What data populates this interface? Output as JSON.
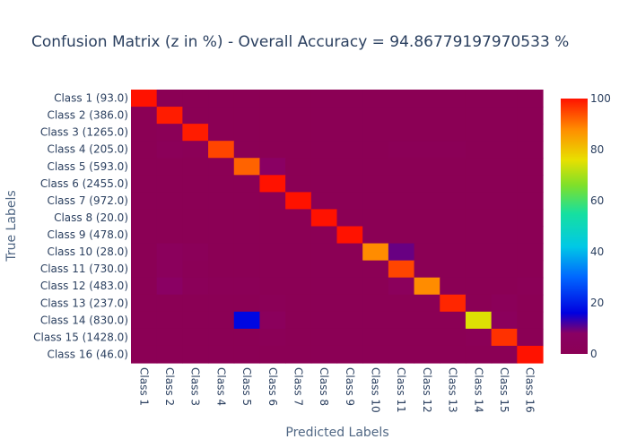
{
  "chart_data": {
    "type": "heatmap",
    "title": "Confusion Matrix (z in %) - Overall Accuracy = 94.86779197970533 %",
    "xlabel": "Predicted Labels",
    "ylabel": "True Labels",
    "x_categories": [
      "Class 1",
      "Class 2",
      "Class 3",
      "Class 4",
      "Class 5",
      "Class 6",
      "Class 7",
      "Class 8",
      "Class 9",
      "Class 10",
      "Class 11",
      "Class 12",
      "Class 13",
      "Class 14",
      "Class 15",
      "Class 16"
    ],
    "y_categories": [
      "Class 1 (93.0)",
      "Class 2 (386.0)",
      "Class 3 (1265.0)",
      "Class 4 (205.0)",
      "Class 5 (593.0)",
      "Class 6 (2455.0)",
      "Class 7 (972.0)",
      "Class 8 (20.0)",
      "Class 9 (478.0)",
      "Class 10 (28.0)",
      "Class 11 (730.0)",
      "Class 12 (483.0)",
      "Class 13 (237.0)",
      "Class 14 (830.0)",
      "Class 15 (1428.0)",
      "Class 16 (46.0)"
    ],
    "z": [
      [
        100,
        0,
        0,
        0,
        0,
        0,
        0,
        0,
        0,
        0,
        0,
        0,
        0,
        0,
        0,
        0
      ],
      [
        0,
        99,
        0,
        0,
        0,
        0,
        0,
        0,
        0,
        0,
        0,
        0,
        0,
        0,
        0,
        0
      ],
      [
        0,
        1,
        99,
        0,
        0,
        0,
        0,
        0,
        0,
        0,
        0,
        0,
        0,
        0,
        0,
        0
      ],
      [
        0,
        2,
        1,
        95,
        0,
        0,
        0,
        0,
        0,
        0,
        1,
        1,
        1,
        0,
        0,
        0
      ],
      [
        0,
        0,
        0,
        0,
        92,
        8,
        0,
        0,
        0,
        0,
        0,
        0,
        0,
        0,
        0,
        0
      ],
      [
        0,
        0,
        0,
        0,
        0,
        100,
        0,
        0,
        0,
        0,
        0,
        0,
        0,
        0,
        0,
        0
      ],
      [
        0,
        0,
        0,
        0,
        0,
        0,
        100,
        0,
        0,
        0,
        0,
        0,
        0,
        0,
        0,
        0
      ],
      [
        0,
        0,
        0,
        0,
        0,
        0,
        0,
        100,
        0,
        0,
        0,
        0,
        0,
        0,
        0,
        0
      ],
      [
        0,
        0,
        0,
        0,
        0,
        0,
        0,
        0,
        100,
        0,
        0,
        0,
        0,
        0,
        0,
        0
      ],
      [
        0,
        4,
        2,
        0,
        0,
        0,
        0,
        0,
        0,
        88,
        10,
        0,
        0,
        0,
        0,
        0
      ],
      [
        0,
        4,
        1,
        0,
        0,
        0,
        0,
        0,
        0,
        0,
        95,
        0,
        0,
        0,
        0,
        0
      ],
      [
        0,
        8,
        2,
        1,
        1,
        0,
        0,
        0,
        0,
        0,
        4,
        88,
        0,
        0,
        0,
        1
      ],
      [
        0,
        0,
        0,
        0,
        0,
        1,
        0,
        0,
        0,
        0,
        0,
        0,
        98,
        0,
        2,
        0
      ],
      [
        0,
        0,
        0,
        0,
        17,
        4,
        0,
        0,
        0,
        0,
        0,
        0,
        0,
        75,
        4,
        0
      ],
      [
        0,
        0,
        0,
        0,
        0,
        1,
        0,
        0,
        0,
        0,
        0,
        0,
        0,
        1,
        97,
        0
      ],
      [
        0,
        0,
        0,
        0,
        0,
        0,
        0,
        0,
        0,
        0,
        0,
        0,
        0,
        0,
        0,
        100
      ]
    ],
    "zlim": [
      0,
      100
    ],
    "colorscale": [
      [
        0.0,
        "#8b0055"
      ],
      [
        0.08,
        "#8a0063"
      ],
      [
        0.16,
        "#0000e0"
      ],
      [
        0.3,
        "#0066ff"
      ],
      [
        0.42,
        "#00c8e6"
      ],
      [
        0.55,
        "#16e0a0"
      ],
      [
        0.66,
        "#7ee02a"
      ],
      [
        0.76,
        "#e8e000"
      ],
      [
        0.88,
        "#ff8c00"
      ],
      [
        1.0,
        "#ff1200"
      ]
    ],
    "colorbar_ticks": [
      0,
      20,
      40,
      60,
      80,
      100
    ],
    "grid": false
  }
}
